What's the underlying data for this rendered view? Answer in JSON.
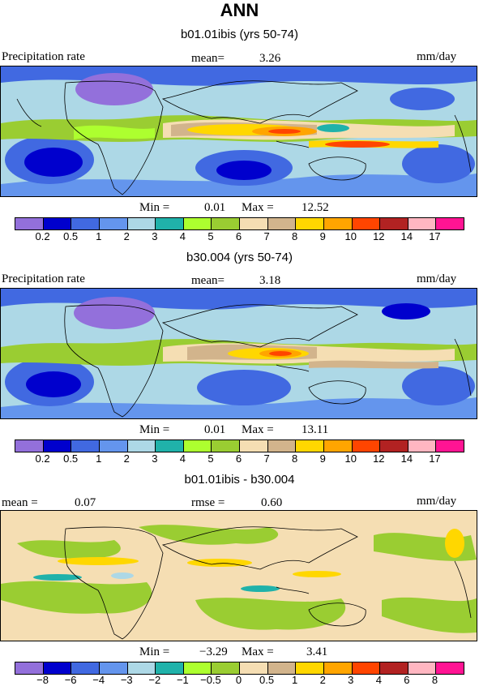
{
  "title": "ANN",
  "colors": {
    "precip_palette": [
      "#9370db",
      "#0000cd",
      "#4169e1",
      "#6495ed",
      "#add8e6",
      "#20b2aa",
      "#adff2f",
      "#9acd32",
      "#f5deb3",
      "#d2b48c",
      "#ffd700",
      "#ffa500",
      "#ff4500",
      "#b22222",
      "#ffb6c1",
      "#ff1493"
    ],
    "diff_palette": [
      "#9370db",
      "#0000cd",
      "#4169e1",
      "#6495ed",
      "#add8e6",
      "#20b2aa",
      "#adff2f",
      "#9acd32",
      "#f5deb3",
      "#d2b48c",
      "#ffd700",
      "#ffa500",
      "#ff4500",
      "#b22222",
      "#ffb6c1",
      "#ff1493"
    ]
  },
  "chart_data": [
    {
      "type": "heatmap",
      "subtitle": "b01.01ibis (yrs 50-74)",
      "left_label": "Precipitation rate",
      "mean_label": "mean=",
      "mean_value": "3.26",
      "units": "mm/day",
      "min_label": "Min =",
      "min_value": "0.01",
      "max_label": "Max =",
      "max_value": "12.52",
      "levels": [
        "0.2",
        "0.5",
        "1",
        "2",
        "3",
        "4",
        "5",
        "6",
        "7",
        "8",
        "9",
        "10",
        "12",
        "14",
        "17"
      ]
    },
    {
      "type": "heatmap",
      "subtitle": "b30.004 (yrs 50-74)",
      "left_label": "Precipitation rate",
      "mean_label": "mean=",
      "mean_value": "3.18",
      "units": "mm/day",
      "min_label": "Min =",
      "min_value": "0.01",
      "max_label": "Max =",
      "max_value": "13.11",
      "levels": [
        "0.2",
        "0.5",
        "1",
        "2",
        "3",
        "4",
        "5",
        "6",
        "7",
        "8",
        "9",
        "10",
        "12",
        "14",
        "17"
      ]
    },
    {
      "type": "heatmap",
      "subtitle": "b01.01ibis - b30.004",
      "left_label": "mean =",
      "mean_value": "0.07",
      "rmse_label": "rmse =",
      "rmse_value": "0.60",
      "units": "mm/day",
      "min_label": "Min =",
      "min_value": "−3.29",
      "max_label": "Max =",
      "max_value": "3.41",
      "levels": [
        "−8",
        "−6",
        "−4",
        "−3",
        "−2",
        "−1",
        "−0.5",
        "0",
        "0.5",
        "1",
        "2",
        "3",
        "4",
        "6",
        "8"
      ]
    }
  ]
}
